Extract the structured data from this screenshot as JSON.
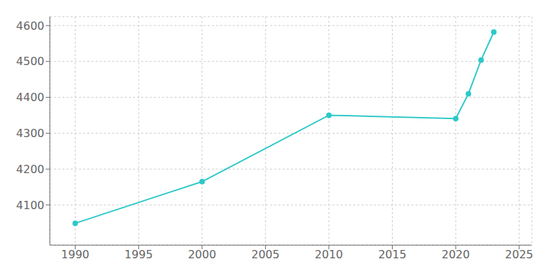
{
  "chart_data": {
    "type": "line",
    "x": [
      1990,
      2000,
      2010,
      2020,
      2021,
      2022,
      2023
    ],
    "values": [
      4049,
      4165,
      4350,
      4341,
      4410,
      4504,
      4582
    ],
    "color": "#2ec8c8",
    "marker": "circle",
    "xlim": [
      1988,
      2026
    ],
    "ylim": [
      3988,
      4625
    ],
    "xticks": [
      1990,
      1995,
      2000,
      2005,
      2010,
      2015,
      2020,
      2025
    ],
    "yticks": [
      4100,
      4200,
      4300,
      4400,
      4500,
      4600
    ],
    "grid": true
  }
}
